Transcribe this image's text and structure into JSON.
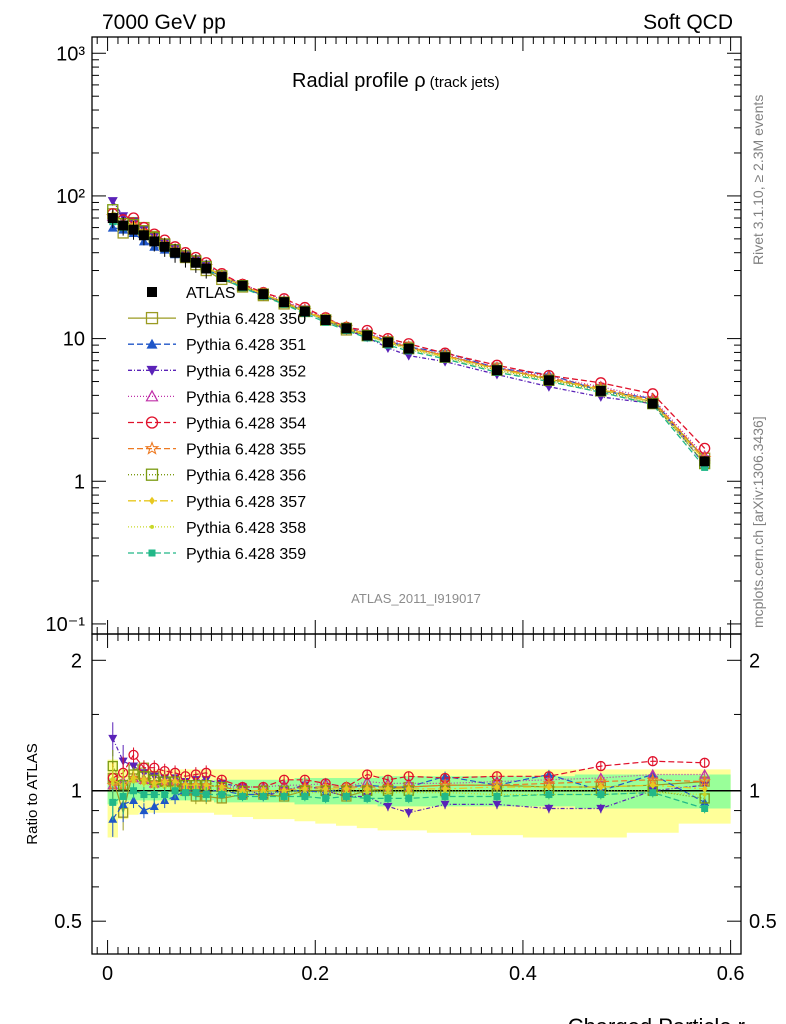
{
  "header": {
    "left": "7000 GeV pp",
    "right": "Soft QCD"
  },
  "plot_title": {
    "main": "Radial profile ρ",
    "sub": "(track jets)"
  },
  "side_labels": {
    "rivet": "Rivet 3.1.10, ≥ 2.3M events",
    "mcplots": "mcplots.cern.ch [arXiv:1306.3436]"
  },
  "analysis_id": "ATLAS_2011_I919017",
  "colors": {
    "ATLAS": "#000000",
    "350": "#9b9b22",
    "351": "#1f56c8",
    "352": "#5a22b8",
    "353": "#c030a8",
    "354": "#e0102a",
    "355": "#ee7a22",
    "356": "#7a9a10",
    "357": "#e8c820",
    "358": "#c8d828",
    "359": "#22b888",
    "band_outer": "#ffff99",
    "band_inner": "#99ff99"
  },
  "chart_data": [
    {
      "type": "line",
      "panel": "main",
      "xlim": [
        -0.015,
        0.61
      ],
      "ylim": [
        0.085,
        1300
      ],
      "log_y": true,
      "y_tick_labels": [
        "10⁻¹",
        "1",
        "10",
        "10²",
        "10³"
      ],
      "x": [
        0.005,
        0.015,
        0.025,
        0.035,
        0.045,
        0.055,
        0.065,
        0.075,
        0.085,
        0.095,
        0.11,
        0.13,
        0.15,
        0.17,
        0.19,
        0.21,
        0.23,
        0.25,
        0.27,
        0.29,
        0.325,
        0.375,
        0.425,
        0.475,
        0.525,
        0.575
      ],
      "series": [
        {
          "name": "ATLAS",
          "marker": "filled-square",
          "values": [
            70,
            62,
            58,
            53,
            48,
            44,
            40,
            37,
            34,
            31,
            27,
            23.5,
            20.5,
            18,
            15.5,
            13.5,
            11.8,
            10.5,
            9.4,
            8.5,
            7.4,
            6.0,
            5.1,
            4.3,
            3.5,
            1.38
          ]
        },
        {
          "name": "Pythia 6.428 350",
          "marker": "open-square",
          "dash": "solid",
          "values": [
            75,
            55,
            65,
            60,
            52,
            46,
            41,
            37,
            33,
            30,
            26,
            23,
            20,
            17.5,
            15.5,
            13.5,
            11.5,
            10.5,
            9.5,
            8.7,
            7.6,
            6.2,
            5.2,
            4.4,
            3.6,
            1.45
          ]
        },
        {
          "name": "Pythia 6.428 351",
          "marker": "filled-triangle-up",
          "dash": "6,3",
          "values": [
            60,
            58,
            55,
            48,
            44,
            42,
            39,
            37,
            34,
            31,
            27,
            23,
            20,
            18,
            15.5,
            13.3,
            12,
            10.8,
            9.6,
            8.7,
            8.0,
            6.2,
            5.6,
            4.3,
            3.8,
            1.3
          ]
        },
        {
          "name": "Pythia 6.428 352",
          "marker": "filled-triangle-down",
          "dash": "4,2,1,2",
          "values": [
            92,
            72,
            66,
            58,
            52,
            47,
            43,
            39,
            36,
            33,
            28,
            24,
            20,
            18,
            16,
            13.5,
            11.5,
            10.2,
            8.6,
            7.6,
            6.9,
            5.6,
            4.6,
            3.9,
            3.5,
            1.42
          ]
        },
        {
          "name": "Pythia 6.428 353",
          "marker": "open-triangle-up",
          "dash": "1,2",
          "values": [
            72,
            65,
            62,
            56,
            50,
            46,
            42,
            38,
            35,
            32,
            27.5,
            24,
            21,
            18.5,
            16,
            14,
            12,
            11,
            9.8,
            8.8,
            7.7,
            6.3,
            5.4,
            4.6,
            3.8,
            1.5
          ]
        },
        {
          "name": "Pythia 6.428 354",
          "marker": "open-circle",
          "dash": "6,3",
          "values": [
            75,
            68,
            70,
            60,
            54,
            49,
            44,
            40,
            37,
            34,
            28.5,
            24,
            21,
            19,
            16.5,
            14,
            12,
            11.4,
            10,
            9.2,
            7.9,
            6.5,
            5.5,
            4.9,
            4.1,
            1.7
          ]
        },
        {
          "name": "Pythia 6.428 355",
          "marker": "open-star",
          "dash": "6,3",
          "values": [
            72,
            64,
            62,
            56,
            50,
            46,
            42,
            38,
            35,
            32,
            27.5,
            23.5,
            20.5,
            18,
            15.8,
            13.8,
            12,
            10.7,
            9.6,
            8.7,
            7.6,
            6.2,
            5.3,
            4.5,
            3.7,
            1.45
          ]
        },
        {
          "name": "Pythia 6.428 356",
          "marker": "open-square",
          "dash": "1,2",
          "values": [
            80,
            64,
            63,
            57,
            51,
            46,
            42,
            38,
            35,
            32,
            27.5,
            23.5,
            20.5,
            18,
            15.5,
            13.5,
            11.8,
            10.5,
            9.4,
            8.5,
            7.4,
            6.0,
            5.1,
            4.3,
            3.5,
            1.33
          ]
        },
        {
          "name": "Pythia 6.428 357",
          "marker": "filled-diamond",
          "dash": "8,3,2,3",
          "values": [
            74,
            64,
            62,
            56,
            50,
            46,
            42,
            38,
            35,
            32,
            27.5,
            23.5,
            20.5,
            18,
            15.6,
            13.6,
            11.9,
            10.6,
            9.5,
            8.6,
            7.5,
            6.1,
            5.2,
            4.4,
            3.6,
            1.4
          ]
        },
        {
          "name": "Pythia 6.428 358",
          "marker": "small-dot",
          "dash": "1,2",
          "values": [
            73,
            64,
            61,
            55,
            49,
            45,
            41,
            37.5,
            34.5,
            31.5,
            27,
            23.3,
            20.3,
            17.8,
            15.4,
            13.4,
            11.7,
            10.4,
            9.3,
            8.4,
            7.3,
            5.9,
            5.0,
            4.2,
            3.5,
            1.35
          ]
        },
        {
          "name": "Pythia 6.428 359",
          "marker": "filled-square-small",
          "dash": "6,3",
          "values": [
            66,
            60,
            58,
            52,
            47,
            43,
            40,
            36.5,
            33.5,
            30.5,
            26.5,
            22.7,
            19.8,
            17.4,
            15,
            13,
            11.4,
            10.1,
            9.0,
            8.2,
            7.2,
            5.8,
            5.0,
            4.2,
            3.45,
            1.25
          ]
        }
      ],
      "legend_position": "middle-left",
      "legend": [
        "ATLAS",
        "Pythia 6.428 350",
        "Pythia 6.428 351",
        "Pythia 6.428 352",
        "Pythia 6.428 353",
        "Pythia 6.428 354",
        "Pythia 6.428 355",
        "Pythia 6.428 356",
        "Pythia 6.428 357",
        "Pythia 6.428 358",
        "Pythia 6.428 359"
      ]
    },
    {
      "type": "line",
      "panel": "ratio",
      "ylabel": "Ratio to ATLAS",
      "xlabel": "Charged Particle r",
      "xlim": [
        -0.015,
        0.61
      ],
      "ylim": [
        0.42,
        2.3
      ],
      "log_y": true,
      "x_tick_labels": [
        "0",
        "0.2",
        "0.4",
        "0.6"
      ],
      "y_tick_labels": [
        "0.5",
        "1",
        "2"
      ],
      "band_outer": [
        [
          0.78,
          1.18
        ],
        [
          0.86,
          1.12
        ],
        [
          0.88,
          1.12
        ],
        [
          0.89,
          1.12
        ],
        [
          0.89,
          1.12
        ],
        [
          0.89,
          1.12
        ],
        [
          0.89,
          1.12
        ],
        [
          0.89,
          1.12
        ],
        [
          0.89,
          1.12
        ],
        [
          0.89,
          1.12
        ],
        [
          0.88,
          1.12
        ],
        [
          0.87,
          1.12
        ],
        [
          0.86,
          1.12
        ],
        [
          0.86,
          1.12
        ],
        [
          0.85,
          1.12
        ],
        [
          0.84,
          1.12
        ],
        [
          0.83,
          1.12
        ],
        [
          0.82,
          1.12
        ],
        [
          0.81,
          1.12
        ],
        [
          0.81,
          1.12
        ],
        [
          0.8,
          1.12
        ],
        [
          0.79,
          1.12
        ],
        [
          0.78,
          1.12
        ],
        [
          0.78,
          1.12
        ],
        [
          0.8,
          1.12
        ],
        [
          0.84,
          1.12
        ]
      ],
      "band_inner": [
        [
          0.93,
          1.07
        ],
        [
          0.95,
          1.05
        ],
        [
          0.95,
          1.05
        ],
        [
          0.95,
          1.05
        ],
        [
          0.95,
          1.05
        ],
        [
          0.95,
          1.05
        ],
        [
          0.95,
          1.05
        ],
        [
          0.95,
          1.05
        ],
        [
          0.95,
          1.05
        ],
        [
          0.95,
          1.05
        ],
        [
          0.94,
          1.06
        ],
        [
          0.94,
          1.06
        ],
        [
          0.94,
          1.06
        ],
        [
          0.94,
          1.06
        ],
        [
          0.93,
          1.07
        ],
        [
          0.93,
          1.07
        ],
        [
          0.93,
          1.07
        ],
        [
          0.93,
          1.07
        ],
        [
          0.92,
          1.08
        ],
        [
          0.92,
          1.08
        ],
        [
          0.92,
          1.08
        ],
        [
          0.92,
          1.08
        ],
        [
          0.92,
          1.08
        ],
        [
          0.91,
          1.09
        ],
        [
          0.91,
          1.09
        ],
        [
          0.91,
          1.09
        ]
      ],
      "series": [
        {
          "name": "Pythia 6.428 350",
          "values": [
            1.07,
            0.89,
            1.12,
            1.13,
            1.08,
            1.05,
            1.03,
            1.0,
            0.97,
            0.97,
            0.96,
            0.98,
            0.98,
            0.97,
            1.0,
            1.0,
            0.97,
            1.0,
            1.01,
            1.02,
            1.03,
            1.03,
            1.02,
            1.02,
            1.03,
            1.05
          ]
        },
        {
          "name": "Pythia 6.428 351",
          "values": [
            0.86,
            0.93,
            0.95,
            0.9,
            0.92,
            0.95,
            0.97,
            1.0,
            1.0,
            1.0,
            1.0,
            0.98,
            0.98,
            1.0,
            1.0,
            0.99,
            1.02,
            1.03,
            1.02,
            1.02,
            1.08,
            1.03,
            1.09,
            1.0,
            1.09,
            0.94
          ]
        },
        {
          "name": "Pythia 6.428 352",
          "values": [
            1.32,
            1.17,
            1.14,
            1.1,
            1.08,
            1.07,
            1.07,
            1.05,
            1.06,
            1.06,
            1.04,
            1.02,
            0.97,
            1.0,
            1.03,
            1.0,
            0.97,
            0.97,
            0.92,
            0.89,
            0.93,
            0.93,
            0.91,
            0.91,
            1.0,
            1.03
          ]
        },
        {
          "name": "Pythia 6.428 353",
          "values": [
            1.03,
            1.05,
            1.07,
            1.06,
            1.04,
            1.05,
            1.05,
            1.03,
            1.03,
            1.03,
            1.02,
            1.02,
            1.02,
            1.03,
            1.03,
            1.04,
            1.02,
            1.05,
            1.04,
            1.04,
            1.04,
            1.05,
            1.06,
            1.07,
            1.09,
            1.09
          ]
        },
        {
          "name": "Pythia 6.428 354",
          "values": [
            1.07,
            1.1,
            1.21,
            1.13,
            1.13,
            1.11,
            1.1,
            1.08,
            1.09,
            1.1,
            1.06,
            1.02,
            1.02,
            1.06,
            1.06,
            1.04,
            1.02,
            1.09,
            1.06,
            1.08,
            1.07,
            1.08,
            1.08,
            1.14,
            1.17,
            1.16
          ]
        },
        {
          "name": "Pythia 6.428 355",
          "values": [
            1.03,
            1.03,
            1.07,
            1.06,
            1.04,
            1.05,
            1.05,
            1.03,
            1.03,
            1.03,
            1.02,
            1.0,
            1.0,
            1.0,
            1.02,
            1.02,
            1.02,
            1.02,
            1.02,
            1.02,
            1.03,
            1.03,
            1.04,
            1.05,
            1.06,
            1.05
          ]
        },
        {
          "name": "Pythia 6.428 356",
          "values": [
            1.14,
            1.03,
            1.09,
            1.08,
            1.06,
            1.05,
            1.05,
            1.03,
            1.03,
            1.03,
            1.02,
            1.0,
            1.0,
            1.0,
            1.0,
            1.0,
            1.0,
            1.0,
            1.0,
            1.0,
            1.0,
            1.0,
            1.0,
            1.0,
            1.0,
            0.96
          ]
        },
        {
          "name": "Pythia 6.428 357",
          "values": [
            1.06,
            1.03,
            1.07,
            1.06,
            1.04,
            1.05,
            1.05,
            1.03,
            1.03,
            1.03,
            1.02,
            1.0,
            1.0,
            1.0,
            1.01,
            1.01,
            1.01,
            1.01,
            1.01,
            1.01,
            1.01,
            1.02,
            1.02,
            1.02,
            1.03,
            1.01
          ]
        },
        {
          "name": "Pythia 6.428 358",
          "values": [
            1.04,
            1.03,
            1.05,
            1.04,
            1.02,
            1.02,
            1.02,
            1.01,
            1.01,
            1.01,
            1.0,
            0.99,
            0.99,
            0.99,
            0.99,
            0.99,
            0.99,
            0.99,
            0.99,
            0.99,
            0.99,
            0.98,
            0.98,
            0.98,
            0.99,
            0.98
          ]
        },
        {
          "name": "Pythia 6.428 359",
          "values": [
            0.94,
            0.97,
            1.0,
            0.98,
            0.98,
            0.98,
            1.0,
            0.99,
            0.99,
            0.98,
            0.98,
            0.97,
            0.97,
            0.97,
            0.97,
            0.96,
            0.97,
            0.96,
            0.96,
            0.96,
            0.97,
            0.97,
            0.98,
            0.98,
            0.99,
            0.91
          ]
        }
      ]
    }
  ]
}
